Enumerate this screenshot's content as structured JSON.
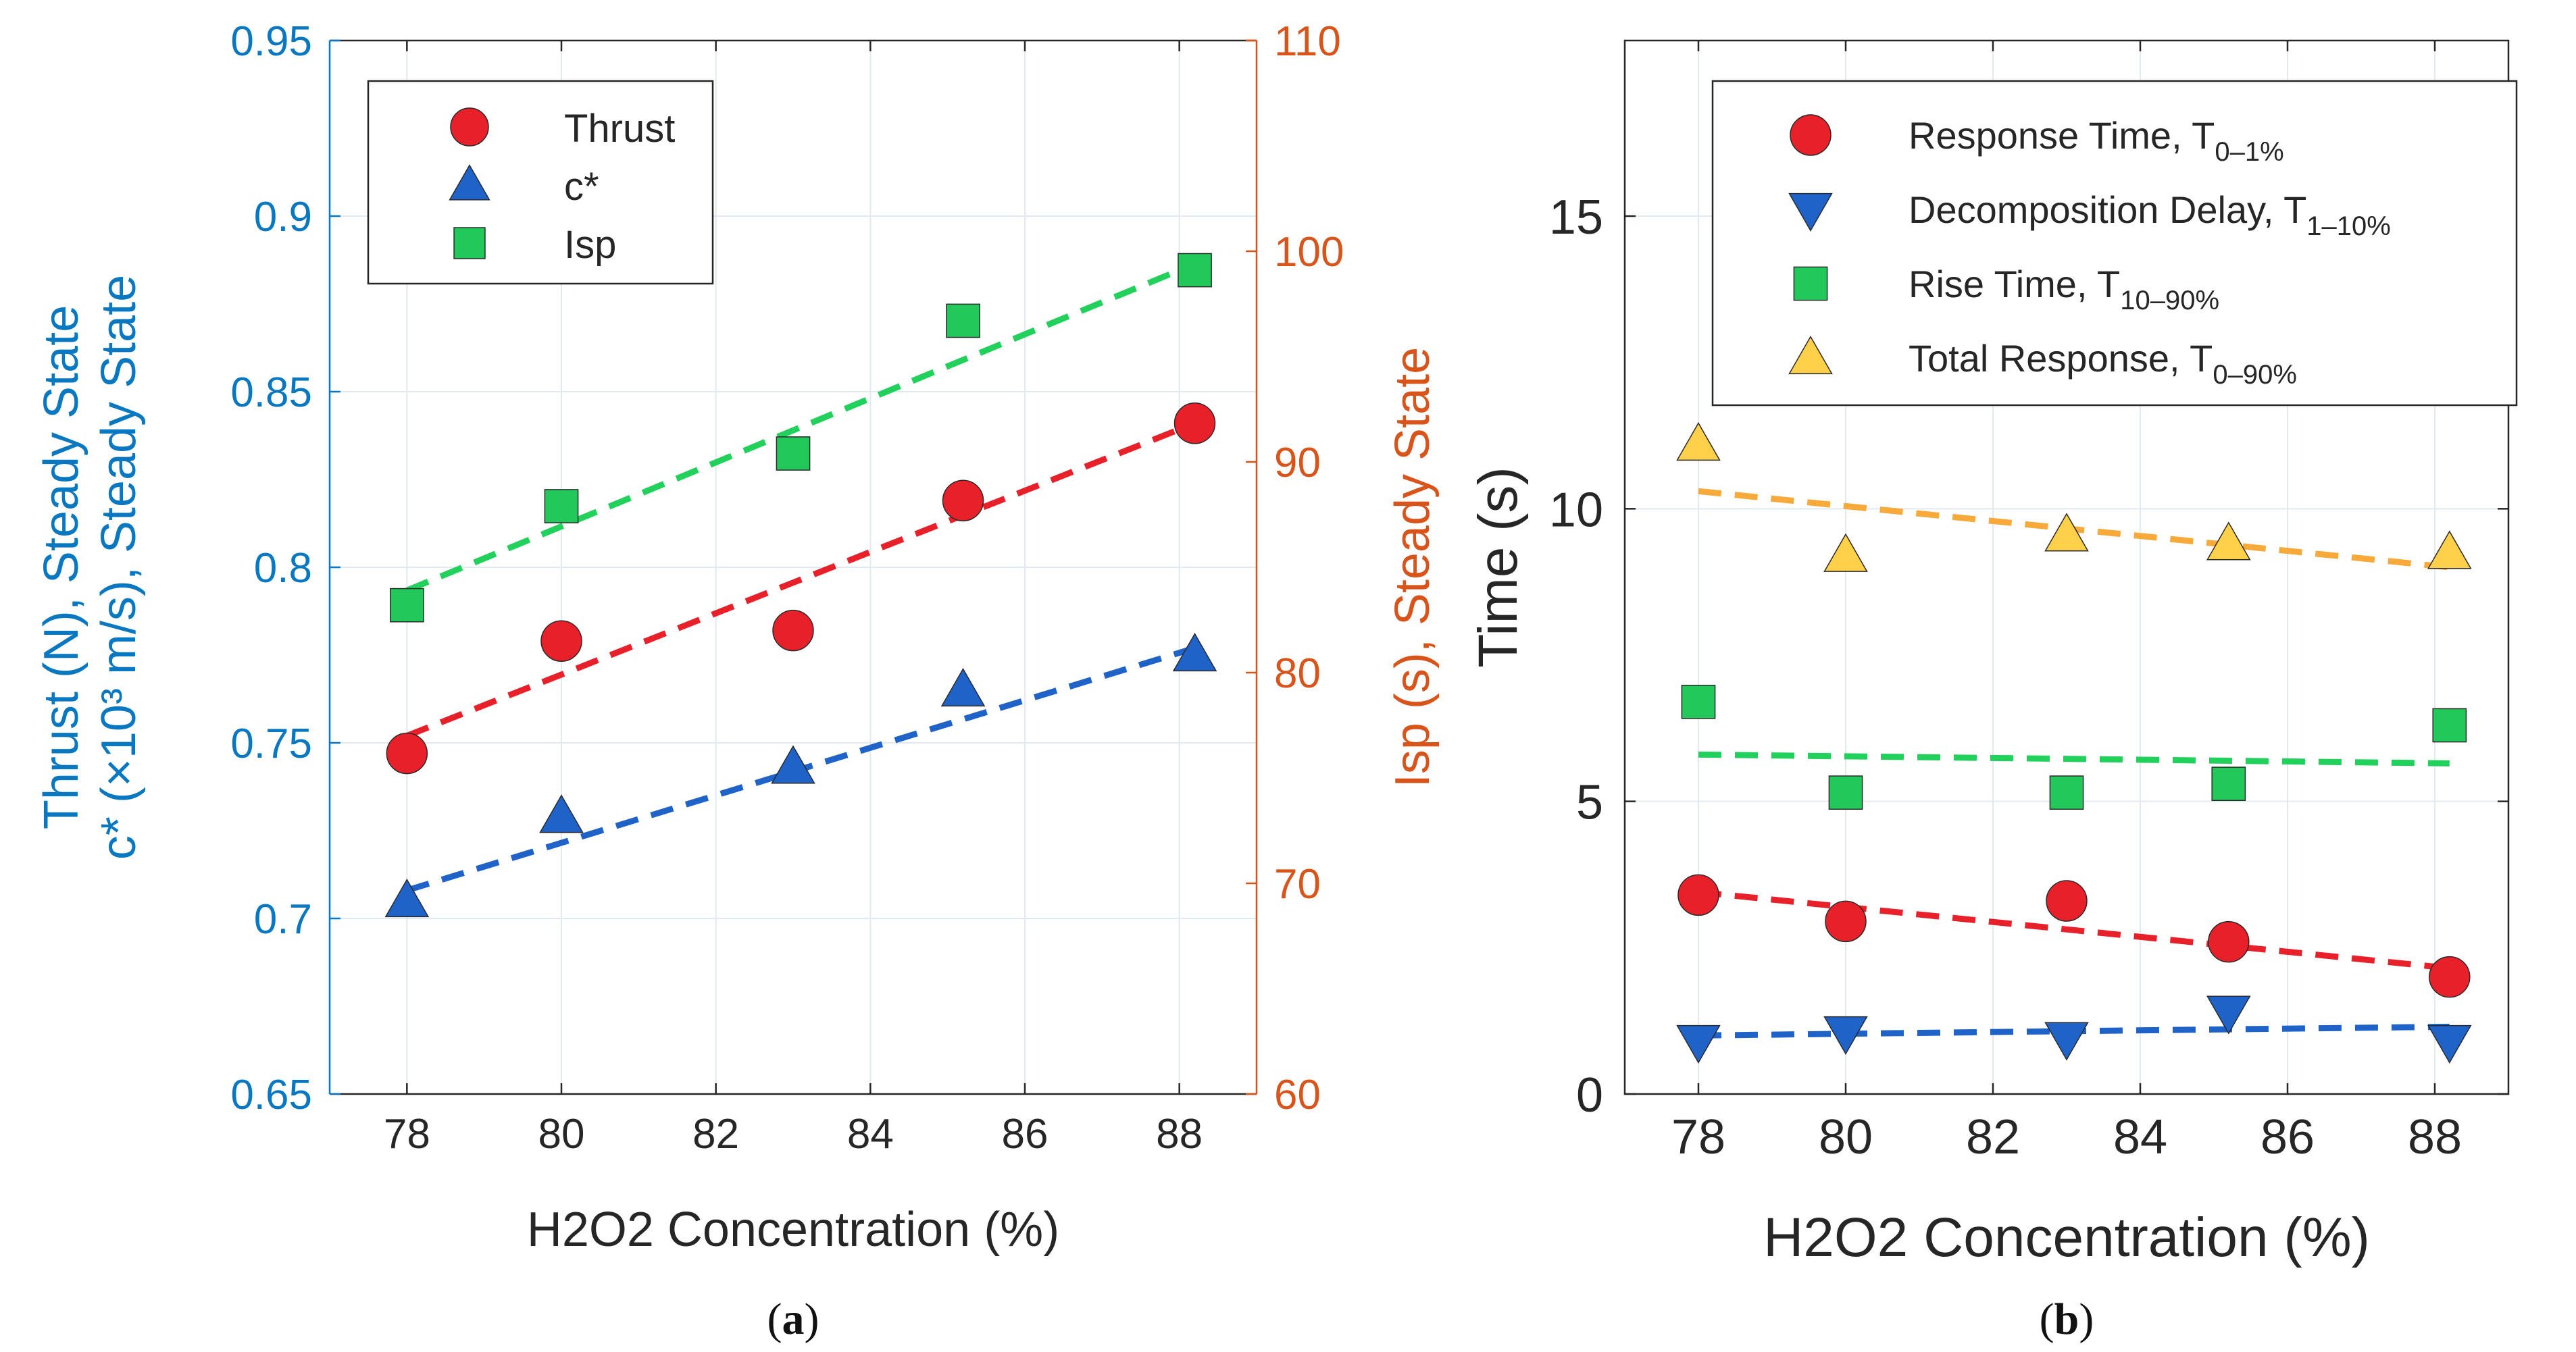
{
  "chart_data": [
    {
      "id": "a",
      "caption": "(a)",
      "type": "scatter",
      "xlabel": "H2O2 Concentration (%)",
      "ylabel_left_lines": [
        "Thrust (N), Steady State",
        "c* (×10³ m/s), Steady State"
      ],
      "ylabel_right": "Isp (s), Steady State",
      "xlim": [
        77,
        89
      ],
      "xticks": [
        "78",
        "80",
        "82",
        "84",
        "86",
        "88"
      ],
      "ylim_left": [
        0.65,
        0.95
      ],
      "yticks_left": [
        "0.65",
        "0.7",
        "0.75",
        "0.8",
        "0.85",
        "0.9",
        "0.95"
      ],
      "ylim_right": [
        60,
        110
      ],
      "yticks_right": [
        "60",
        "70",
        "80",
        "90",
        "100",
        "110"
      ],
      "grid": true,
      "legend_position": "top-left",
      "series": [
        {
          "name": "Thrust",
          "marker": "circle",
          "color": "#e8202a",
          "line_color": "#e8202a",
          "axis": "left",
          "x": [
            78,
            80,
            83,
            85.2,
            88.2
          ],
          "y": [
            0.747,
            0.779,
            0.782,
            0.819,
            0.841
          ],
          "fit": [
            [
              78,
              0.752
            ],
            [
              88.2,
              0.841
            ]
          ]
        },
        {
          "name": "c*",
          "marker": "triangle-up",
          "color": "#1f63c8",
          "line_color": "#1f63c8",
          "axis": "left",
          "x": [
            78,
            80,
            83,
            85.2,
            88.2
          ],
          "y": [
            0.705,
            0.729,
            0.743,
            0.765,
            0.775
          ],
          "fit": [
            [
              78,
              0.708
            ],
            [
              88.2,
              0.777
            ]
          ]
        },
        {
          "name": "Isp",
          "marker": "square",
          "color": "#22c95a",
          "line_color": "#22d05c",
          "axis": "right",
          "x": [
            78,
            80,
            83,
            85.2,
            88.2
          ],
          "y": [
            83.2,
            87.9,
            90.4,
            96.7,
            99.1
          ],
          "fit": [
            [
              78,
              83.9
            ],
            [
              88.2,
              99.4
            ]
          ]
        }
      ]
    },
    {
      "id": "b",
      "caption": "(b)",
      "type": "scatter",
      "xlabel": "H2O2 Concentration (%)",
      "ylabel": "Time (s)",
      "xlim": [
        77,
        89
      ],
      "xticks": [
        "78",
        "80",
        "82",
        "84",
        "86",
        "88"
      ],
      "ylim": [
        0,
        18
      ],
      "yticks": [
        "0",
        "5",
        "10",
        "15"
      ],
      "grid": true,
      "legend_position": "top-right",
      "series": [
        {
          "name": "Response Time, T",
          "subscript": "0–1%",
          "marker": "circle",
          "color": "#e8202a",
          "line_color": "#e8202a",
          "x": [
            78,
            80,
            83,
            85.2,
            88.2
          ],
          "y": [
            3.4,
            2.95,
            3.3,
            2.6,
            2.0
          ],
          "fit": [
            [
              78,
              3.45
            ],
            [
              88.2,
              2.15
            ]
          ]
        },
        {
          "name": "Decomposition Delay, T",
          "subscript": "1–10%",
          "marker": "triangle-down",
          "color": "#1f63c8",
          "line_color": "#1f63c8",
          "x": [
            78,
            80,
            83,
            85.2,
            88.2
          ],
          "y": [
            0.9,
            1.05,
            0.95,
            1.4,
            0.9
          ],
          "fit": [
            [
              78,
              1.0
            ],
            [
              88.2,
              1.15
            ]
          ]
        },
        {
          "name": "Rise Time, T",
          "subscript": "10–90%",
          "marker": "square",
          "color": "#22c95a",
          "line_color": "#22d05c",
          "x": [
            78,
            80,
            83,
            85.2,
            88.2
          ],
          "y": [
            6.7,
            5.15,
            5.15,
            5.3,
            6.3
          ],
          "fit": [
            [
              78,
              5.8
            ],
            [
              88.2,
              5.65
            ]
          ]
        },
        {
          "name": "Total Response, T",
          "subscript": "0–90%",
          "marker": "triangle-up",
          "color": "#ffd04a",
          "line_color": "#f7a93a",
          "x": [
            78,
            80,
            83,
            85.2,
            88.2
          ],
          "y": [
            11.1,
            9.2,
            9.55,
            9.4,
            9.25
          ],
          "fit": [
            [
              78,
              10.3
            ],
            [
              88.2,
              9.0
            ]
          ]
        }
      ]
    }
  ],
  "colors": {
    "left_axis": "#0a78c0",
    "right_axis": "#d9541a",
    "black_axis": "#262626",
    "grid": "#e2e9f1"
  }
}
